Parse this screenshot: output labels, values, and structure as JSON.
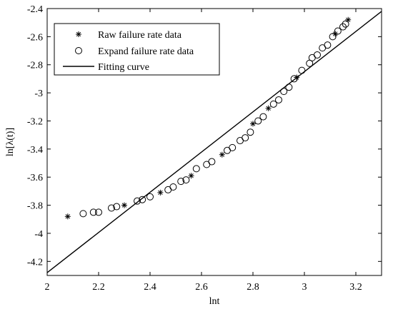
{
  "chart_data": {
    "type": "scatter",
    "xlabel": "lnt",
    "ylabel": "ln[λ(t)]",
    "xlim": [
      2,
      3.3
    ],
    "ylim": [
      -4.3,
      -2.4
    ],
    "xticks": [
      "2",
      "2.2",
      "2.4",
      "2.6",
      "2.8",
      "3",
      "3.2"
    ],
    "yticks": [
      "-2.4",
      "-2.6",
      "-2.8",
      "-3",
      "-3.2",
      "-3.4",
      "-3.6",
      "-3.8",
      "-4",
      "-4.2"
    ],
    "legend_position": "top-left",
    "series": [
      {
        "name": "Raw failure rate data",
        "marker": "asterisk",
        "x": [
          2.08,
          2.3,
          2.44,
          2.56,
          2.68,
          2.8,
          2.86,
          2.97,
          3.12,
          3.17
        ],
        "y": [
          -3.88,
          -3.8,
          -3.71,
          -3.59,
          -3.44,
          -3.22,
          -3.11,
          -2.89,
          -2.58,
          -2.48
        ]
      },
      {
        "name": "Expand failure rate data",
        "marker": "circle",
        "x": [
          2.14,
          2.18,
          2.2,
          2.25,
          2.27,
          2.35,
          2.37,
          2.4,
          2.47,
          2.49,
          2.52,
          2.54,
          2.58,
          2.62,
          2.64,
          2.7,
          2.72,
          2.75,
          2.77,
          2.79,
          2.82,
          2.84,
          2.88,
          2.9,
          2.92,
          2.94,
          2.96,
          2.99,
          3.02,
          3.03,
          3.05,
          3.07,
          3.09,
          3.11,
          3.13,
          3.15,
          3.16
        ],
        "y": [
          -3.86,
          -3.85,
          -3.85,
          -3.82,
          -3.81,
          -3.77,
          -3.76,
          -3.74,
          -3.69,
          -3.67,
          -3.63,
          -3.62,
          -3.54,
          -3.51,
          -3.49,
          -3.41,
          -3.39,
          -3.34,
          -3.32,
          -3.28,
          -3.2,
          -3.17,
          -3.08,
          -3.05,
          -2.99,
          -2.96,
          -2.9,
          -2.84,
          -2.79,
          -2.75,
          -2.73,
          -2.68,
          -2.66,
          -2.6,
          -2.56,
          -2.53,
          -2.51
        ]
      },
      {
        "name": "Fitting curve",
        "marker": "line",
        "x": [
          2,
          3.3
        ],
        "y": [
          -4.28,
          -2.42
        ]
      }
    ]
  }
}
